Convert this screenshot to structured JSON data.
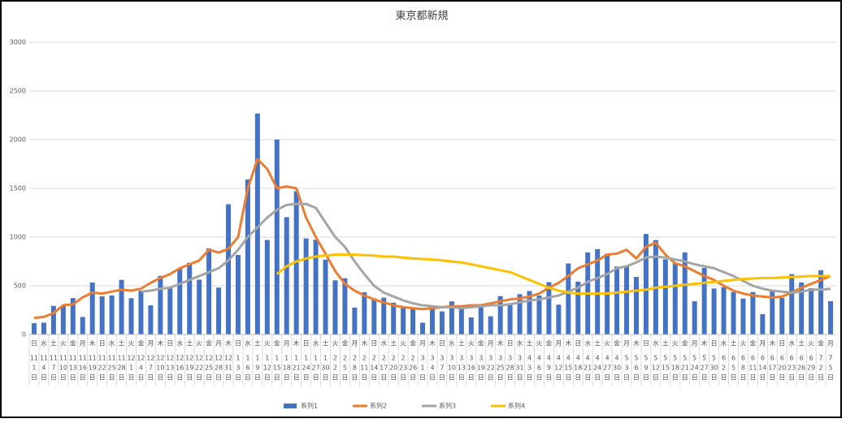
{
  "chart_data": {
    "type": "bar",
    "title": "東京都新規",
    "ylim": [
      0,
      3000
    ],
    "yticks": [
      0,
      500,
      1000,
      1500,
      2000,
      2500,
      3000
    ],
    "grid": true,
    "legend": "bottom",
    "weekdays": [
      "日",
      "水",
      "土",
      "火",
      "金",
      "月",
      "木",
      "日",
      "水",
      "土",
      "火",
      "金",
      "月",
      "木",
      "日",
      "水",
      "土",
      "火",
      "金",
      "月",
      "木",
      "日",
      "水",
      "土",
      "火",
      "金",
      "月",
      "木",
      "日",
      "水",
      "土",
      "火",
      "金",
      "月",
      "木",
      "日",
      "水",
      "土",
      "火",
      "金",
      "月",
      "木",
      "日",
      "水",
      "土",
      "火",
      "金",
      "月",
      "木",
      "日",
      "水",
      "土",
      "火",
      "金",
      "月",
      "木",
      "日",
      "水",
      "土",
      "火",
      "金",
      "月",
      "木",
      "日",
      "水",
      "土",
      "火",
      "金",
      "月",
      "木",
      "日",
      "水",
      "土",
      "火",
      "金",
      "月",
      "木",
      "日",
      "水",
      "土",
      "火",
      "金",
      "月"
    ],
    "months": [
      "11",
      "11",
      "11",
      "11",
      "11",
      "11",
      "11",
      "11",
      "11",
      "11",
      "12",
      "12",
      "12",
      "12",
      "12",
      "12",
      "12",
      "12",
      "12",
      "12",
      "12",
      "1",
      "1",
      "1",
      "1",
      "1",
      "1",
      "1",
      "1",
      "1",
      "1",
      "2",
      "2",
      "2",
      "2",
      "2",
      "2",
      "2",
      "2",
      "2",
      "3",
      "3",
      "3",
      "3",
      "3",
      "3",
      "3",
      "3",
      "3",
      "3",
      "3",
      "4",
      "4",
      "4",
      "4",
      "4",
      "4",
      "4",
      "4",
      "4",
      "4",
      "5",
      "5",
      "5",
      "5",
      "5",
      "5",
      "5",
      "5",
      "5",
      "5",
      "6",
      "6",
      "6",
      "6",
      "6",
      "6",
      "6",
      "6",
      "6",
      "6",
      "7",
      "7"
    ],
    "days": [
      "1",
      "4",
      "7",
      "10",
      "13",
      "16",
      "19",
      "22",
      "25",
      "28",
      "1",
      "4",
      "7",
      "10",
      "13",
      "16",
      "19",
      "22",
      "25",
      "28",
      "31",
      "3",
      "6",
      "9",
      "12",
      "15",
      "18",
      "21",
      "24",
      "27",
      "30",
      "2",
      "5",
      "8",
      "11",
      "14",
      "17",
      "20",
      "23",
      "26",
      "1",
      "4",
      "7",
      "10",
      "13",
      "16",
      "19",
      "22",
      "25",
      "28",
      "31",
      "3",
      "6",
      "9",
      "12",
      "15",
      "18",
      "21",
      "24",
      "27",
      "30",
      "3",
      "6",
      "9",
      "12",
      "15",
      "18",
      "21",
      "24",
      "27",
      "30",
      "2",
      "5",
      "8",
      "11",
      "14",
      "17",
      "20",
      "23",
      "26",
      "29",
      "2",
      "5"
    ],
    "day_suffix": "日",
    "series": [
      {
        "name": "系列1",
        "type": "bar",
        "color": "#4472c4",
        "values": [
          116,
          122,
          294,
          293,
          374,
          180,
          534,
          391,
          401,
          561,
          372,
          449,
          299,
          602,
          480,
          678,
          736,
          563,
          884,
          481,
          1337,
          816,
          1591,
          2268,
          970,
          2001,
          1204,
          1471,
          986,
          973,
          769,
          556,
          577,
          276,
          434,
          371,
          378,
          327,
          275,
          270,
          121,
          279,
          237,
          340,
          289,
          175,
          303,
          187,
          394,
          313,
          414,
          446,
          399,
          537,
          306,
          729,
          543,
          843,
          876,
          828,
          698,
          708,
          591,
          1032,
          969,
          772,
          732,
          843,
          341,
          684,
          472,
          487,
          436,
          369,
          436,
          209,
          452,
          376,
          619,
          534,
          476,
          660,
          342
        ]
      },
      {
        "name": "系列2",
        "type": "line",
        "color": "#ed7d31",
        "values": [
          170,
          180,
          220,
          300,
          310,
          380,
          430,
          420,
          440,
          460,
          450,
          470,
          530,
          580,
          620,
          680,
          720,
          760,
          870,
          840,
          880,
          1000,
          1500,
          1800,
          1700,
          1500,
          1520,
          1500,
          1200,
          1000,
          830,
          650,
          520,
          450,
          400,
          360,
          330,
          300,
          280,
          270,
          260,
          270,
          280,
          290,
          290,
          300,
          300,
          320,
          340,
          360,
          370,
          390,
          420,
          480,
          530,
          600,
          680,
          720,
          760,
          820,
          830,
          870,
          780,
          900,
          940,
          820,
          730,
          700,
          650,
          600,
          560,
          500,
          450,
          420,
          400,
          390,
          380,
          390,
          430,
          480,
          520,
          560,
          600
        ]
      },
      {
        "name": "系列3",
        "type": "line",
        "color": "#a5a5a5",
        "values": [
          null,
          null,
          null,
          null,
          null,
          null,
          null,
          null,
          null,
          null,
          null,
          440,
          450,
          470,
          480,
          520,
          560,
          600,
          640,
          680,
          760,
          870,
          1000,
          1100,
          1200,
          1280,
          1330,
          1340,
          1340,
          1300,
          1150,
          1000,
          900,
          750,
          620,
          500,
          430,
          390,
          350,
          320,
          300,
          290,
          280,
          280,
          270,
          280,
          290,
          300,
          300,
          310,
          330,
          350,
          360,
          380,
          400,
          440,
          480,
          540,
          580,
          620,
          680,
          700,
          740,
          790,
          800,
          790,
          770,
          750,
          720,
          700,
          680,
          640,
          600,
          550,
          500,
          470,
          450,
          440,
          430,
          440,
          460,
          460,
          470
        ]
      },
      {
        "name": "系列4",
        "type": "line",
        "color": "#ffc000",
        "values": [
          null,
          null,
          null,
          null,
          null,
          null,
          null,
          null,
          null,
          null,
          null,
          null,
          null,
          null,
          null,
          null,
          null,
          null,
          null,
          null,
          null,
          null,
          null,
          null,
          null,
          620,
          700,
          750,
          780,
          800,
          810,
          820,
          820,
          820,
          815,
          810,
          800,
          800,
          790,
          780,
          775,
          770,
          760,
          750,
          740,
          720,
          700,
          680,
          660,
          640,
          600,
          560,
          520,
          480,
          450,
          430,
          420,
          420,
          420,
          420,
          430,
          440,
          450,
          460,
          480,
          490,
          500,
          510,
          520,
          530,
          540,
          550,
          560,
          570,
          575,
          580,
          580,
          585,
          590,
          595,
          600,
          600,
          600
        ]
      }
    ]
  }
}
